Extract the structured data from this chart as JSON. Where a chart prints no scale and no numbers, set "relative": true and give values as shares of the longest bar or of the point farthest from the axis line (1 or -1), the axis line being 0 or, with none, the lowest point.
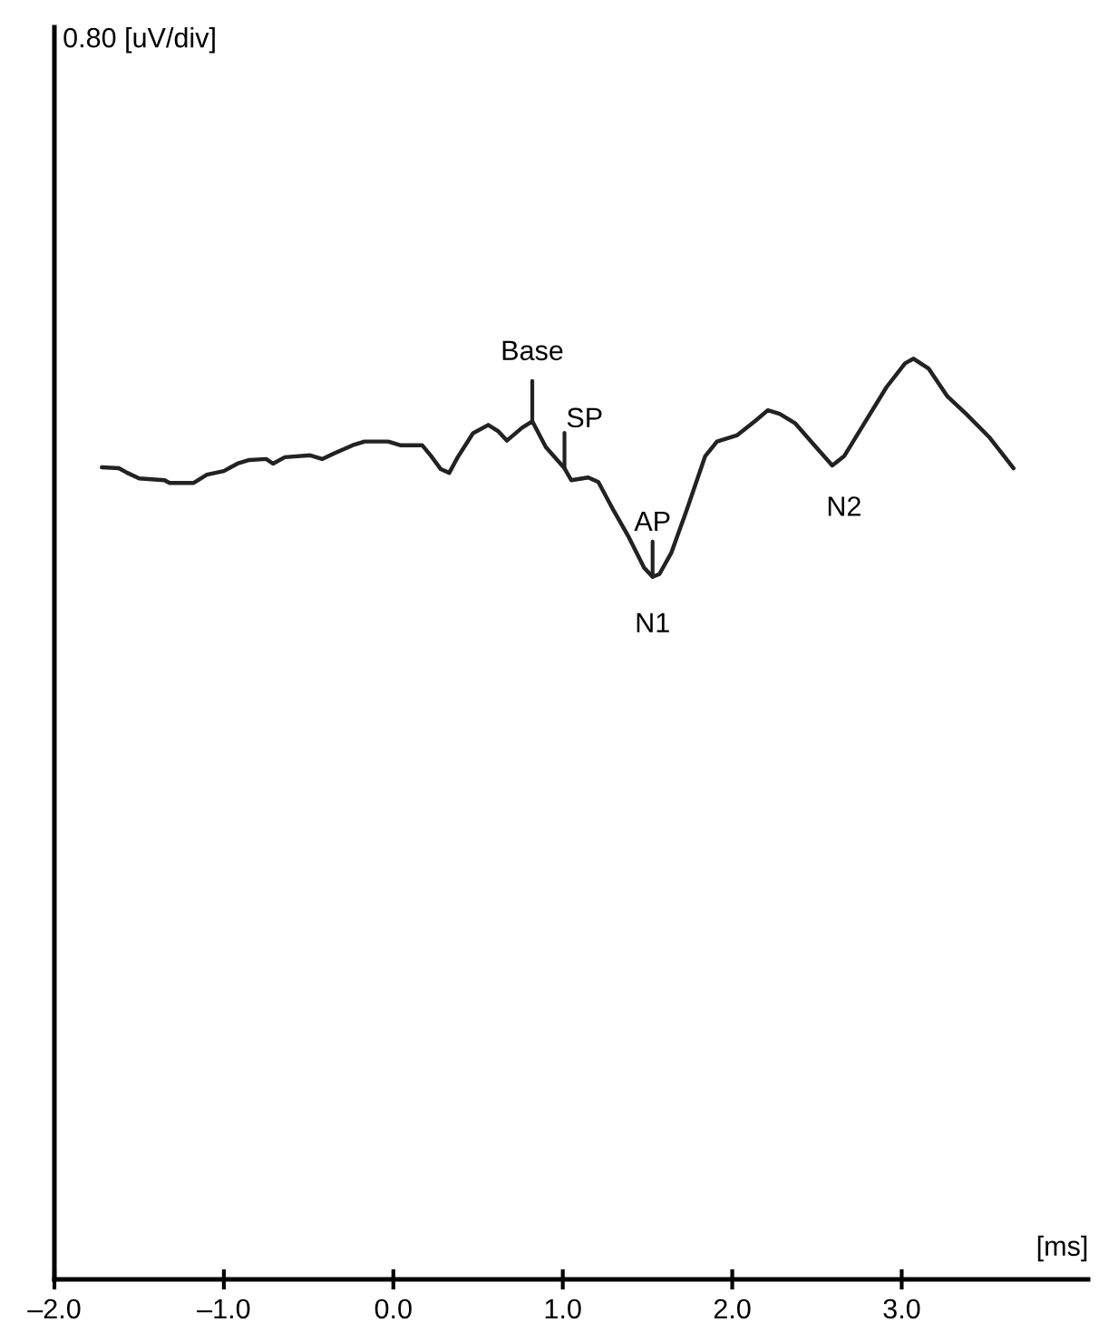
{
  "chart_data": {
    "type": "line",
    "relative": true,
    "xlabel": "[ms]",
    "xlim": [
      -2.0,
      4.1
    ],
    "xticks": [
      {
        "value": -2,
        "label": "–2.0"
      },
      {
        "value": -1,
        "label": "–1.0"
      },
      {
        "value": 0,
        "label": "0.0"
      },
      {
        "value": 1,
        "label": "1.0"
      },
      {
        "value": 2,
        "label": "2.0"
      },
      {
        "value": 3,
        "label": "3.0"
      }
    ],
    "grid": false,
    "marker": "none",
    "line_style": "solid",
    "annotations": [
      "0.80 [uV/div]",
      {
        "text": "Base",
        "x": 0.82,
        "y": 0.932
      },
      {
        "text": "SP",
        "x": 1.01,
        "y": 0.881
      },
      {
        "text": "AP",
        "x": 1.53,
        "y": 0.763
      },
      {
        "text": "N1",
        "x": 1.53,
        "y": 0.763
      },
      {
        "text": "N2",
        "x": 2.66,
        "y": 0.884
      }
    ],
    "series": [
      {
        "color": "#222222",
        "x": [
          -1.72,
          -1.62,
          -1.57,
          -1.5,
          -1.35,
          -1.32,
          -1.18,
          -1.1,
          -1.0,
          -0.92,
          -0.85,
          -0.75,
          -0.71,
          -0.64,
          -0.49,
          -0.42,
          -0.35,
          -0.24,
          -0.17,
          -0.03,
          0.04,
          0.17,
          0.22,
          0.28,
          0.33,
          0.38,
          0.47,
          0.56,
          0.62,
          0.67,
          0.76,
          0.82,
          0.9,
          1.01,
          1.05,
          1.15,
          1.21,
          1.3,
          1.39,
          1.48,
          1.53,
          1.57,
          1.64,
          1.73,
          1.84,
          1.91,
          2.03,
          2.14,
          2.21,
          2.28,
          2.37,
          2.48,
          2.59,
          2.66,
          2.77,
          2.91,
          3.02,
          3.07,
          3.16,
          3.27,
          3.38,
          3.52,
          3.66
        ],
        "values": [
          0.882,
          0.881,
          0.876,
          0.87,
          0.868,
          0.865,
          0.865,
          0.874,
          0.878,
          0.886,
          0.89,
          0.891,
          0.886,
          0.893,
          0.895,
          0.891,
          0.897,
          0.906,
          0.91,
          0.91,
          0.906,
          0.906,
          0.895,
          0.88,
          0.876,
          0.893,
          0.919,
          0.928,
          0.921,
          0.911,
          0.925,
          0.932,
          0.904,
          0.881,
          0.868,
          0.871,
          0.866,
          0.835,
          0.806,
          0.773,
          0.763,
          0.766,
          0.789,
          0.835,
          0.894,
          0.91,
          0.917,
          0.933,
          0.944,
          0.94,
          0.93,
          0.907,
          0.884,
          0.894,
          0.927,
          0.969,
          0.995,
          1.0,
          0.989,
          0.959,
          0.94,
          0.914,
          0.881
        ]
      }
    ]
  }
}
